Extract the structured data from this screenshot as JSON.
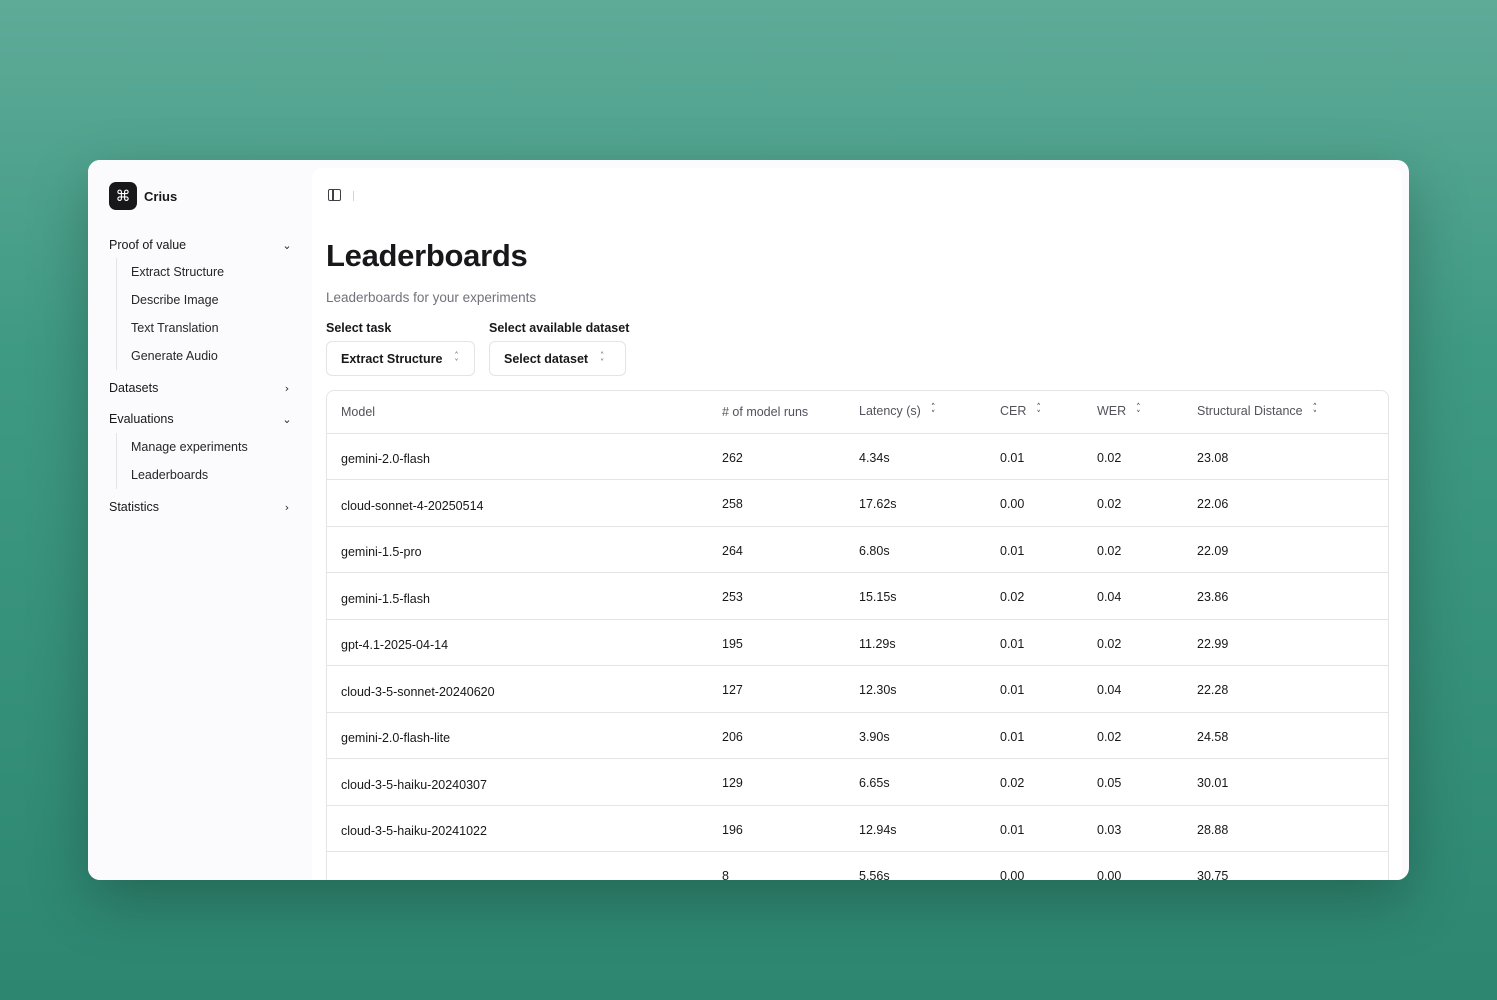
{
  "brand": {
    "logo_glyph": "⌘",
    "name": "Crius"
  },
  "sidebar": {
    "groups": [
      {
        "label": "Proof of value",
        "expanded": true,
        "items": [
          "Extract Structure",
          "Describe Image",
          "Text Translation",
          "Generate Audio"
        ]
      },
      {
        "label": "Datasets",
        "expanded": false,
        "items": []
      },
      {
        "label": "Evaluations",
        "expanded": true,
        "items": [
          "Manage experiments",
          "Leaderboards"
        ]
      },
      {
        "label": "Statistics",
        "expanded": false,
        "items": []
      }
    ]
  },
  "page": {
    "title": "Leaderboards",
    "subtitle": "Leaderboards for your experiments"
  },
  "filters": {
    "task_label": "Select task",
    "task_value": "Extract Structure",
    "dataset_label": "Select available dataset",
    "dataset_value": "Select dataset"
  },
  "table": {
    "columns": [
      "Model",
      "# of model runs",
      "Latency (s)",
      "CER",
      "WER",
      "Structural Distance"
    ],
    "rows": [
      [
        "gemini-2.0-flash",
        "262",
        "4.34s",
        "0.01",
        "0.02",
        "23.08"
      ],
      [
        "cloud-sonnet-4-20250514",
        "258",
        "17.62s",
        "0.00",
        "0.02",
        "22.06"
      ],
      [
        "gemini-1.5-pro",
        "264",
        "6.80s",
        "0.01",
        "0.02",
        "22.09"
      ],
      [
        "gemini-1.5-flash",
        "253",
        "15.15s",
        "0.02",
        "0.04",
        "23.86"
      ],
      [
        "gpt-4.1-2025-04-14",
        "195",
        "11.29s",
        "0.01",
        "0.02",
        "22.99"
      ],
      [
        "cloud-3-5-sonnet-20240620",
        "127",
        "12.30s",
        "0.01",
        "0.04",
        "22.28"
      ],
      [
        "gemini-2.0-flash-lite",
        "206",
        "3.90s",
        "0.01",
        "0.02",
        "24.58"
      ],
      [
        "cloud-3-5-haiku-20240307",
        "129",
        "6.65s",
        "0.02",
        "0.05",
        "30.01"
      ],
      [
        "cloud-3-5-haiku-20241022",
        "196",
        "12.94s",
        "0.01",
        "0.03",
        "28.88"
      ],
      [
        "",
        "8",
        "5.56s",
        "0.00",
        "0.00",
        "30.75"
      ]
    ]
  },
  "colors": {
    "background": "#3f9a83",
    "text": "#18181b",
    "muted": "#71717a",
    "border": "#e4e4e7"
  },
  "icons": [
    "command-icon",
    "chevron-down-icon",
    "chevron-right-icon",
    "sidebar-toggle-icon",
    "sort-icon",
    "chevron-updown-icon"
  ]
}
